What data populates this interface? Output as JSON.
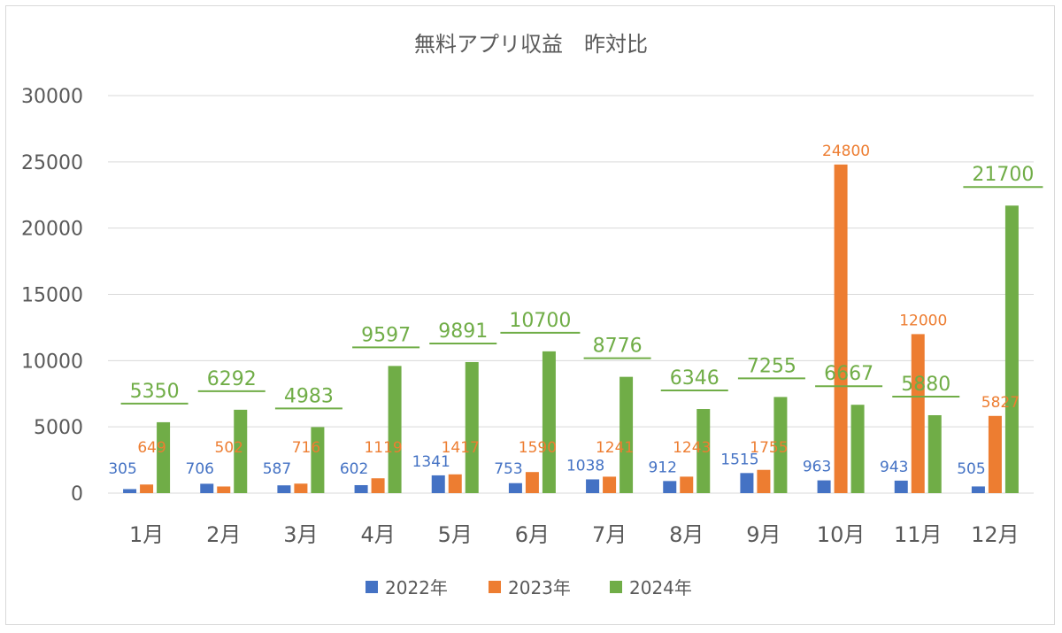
{
  "chart_data": {
    "type": "bar",
    "title": "無料アプリ収益　昨対比",
    "categories": [
      "1月",
      "2月",
      "3月",
      "4月",
      "5月",
      "6月",
      "7月",
      "8月",
      "9月",
      "10月",
      "11月",
      "12月"
    ],
    "series": [
      {
        "name": "2022年",
        "color": "#4472C4",
        "values": [
          305,
          706,
          587,
          602,
          1341,
          753,
          1038,
          912,
          1515,
          963,
          943,
          505
        ]
      },
      {
        "name": "2023年",
        "color": "#ED7D31",
        "values": [
          649,
          502,
          716,
          1119,
          1417,
          1590,
          1241,
          1243,
          1755,
          24800,
          12000,
          5827
        ]
      },
      {
        "name": "2024年",
        "color": "#70AD47",
        "values": [
          5350,
          6292,
          4983,
          9597,
          9891,
          10700,
          8776,
          6346,
          7255,
          6667,
          5880,
          21700
        ]
      }
    ],
    "yticks": [
      "0",
      "5000",
      "10000",
      "15000",
      "20000",
      "25000",
      "30000"
    ],
    "ylim": [
      0,
      30000
    ],
    "grid": true,
    "legend_position": "bottom"
  }
}
